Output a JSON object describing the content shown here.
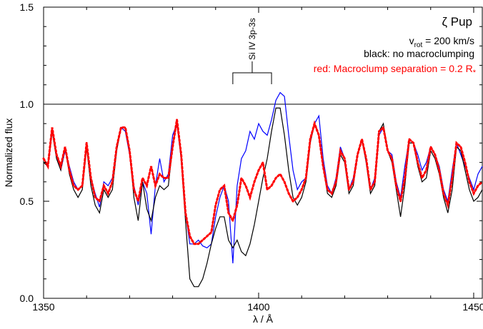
{
  "chart_data": {
    "type": "line",
    "title": "",
    "xlabel": "λ / Å",
    "ylabel": "Normalized flux",
    "xlim": [
      1350,
      1452
    ],
    "ylim": [
      0.0,
      1.5
    ],
    "x_ticks": [
      1350,
      1400,
      1450
    ],
    "x_tick_labels": [
      "1350",
      "1400",
      "1450"
    ],
    "y_ticks": [
      0.0,
      0.5,
      1.0,
      1.5
    ],
    "y_tick_labels": [
      "0.0",
      "0.5",
      "1.0",
      "1.5"
    ],
    "reference_line": 1.0,
    "annotations": {
      "star": "ζ Pup",
      "vrot": {
        "prefix": "v",
        "sub": "rot",
        "suffix": " = 200 km/s"
      },
      "black_note": "black: no macroclumping",
      "red_note": {
        "text": "red: Macroclump separation = 0.2 R",
        "sub": "*"
      },
      "line_id": "Si IV 3p-3s",
      "line_id_bracket": [
        1394,
        1403
      ]
    },
    "series": [
      {
        "color": "#0000ff",
        "style": "solid",
        "x": [
          1350,
          1351,
          1352,
          1353,
          1354,
          1355,
          1356,
          1357,
          1358,
          1359,
          1360,
          1361,
          1362,
          1363,
          1364,
          1365,
          1366,
          1367,
          1368,
          1369,
          1370,
          1371,
          1372,
          1373,
          1374,
          1375,
          1376,
          1377,
          1378,
          1379,
          1380,
          1381,
          1382,
          1383,
          1384,
          1385,
          1386,
          1387,
          1388,
          1389,
          1390,
          1391,
          1392,
          1393,
          1394,
          1395,
          1396,
          1397,
          1398,
          1399,
          1400,
          1401,
          1402,
          1403,
          1404,
          1405,
          1406,
          1407,
          1408,
          1409,
          1410,
          1411,
          1412,
          1413,
          1414,
          1415,
          1416,
          1417,
          1418,
          1419,
          1420,
          1421,
          1422,
          1423,
          1424,
          1425,
          1426,
          1427,
          1428,
          1429,
          1430,
          1431,
          1432,
          1433,
          1434,
          1435,
          1436,
          1437,
          1438,
          1439,
          1440,
          1441,
          1442,
          1443,
          1444,
          1445,
          1446,
          1447,
          1448,
          1449,
          1450,
          1451,
          1452
        ],
        "y": [
          0.72,
          0.68,
          0.86,
          0.74,
          0.66,
          0.76,
          0.68,
          0.6,
          0.56,
          0.58,
          0.78,
          0.62,
          0.54,
          0.47,
          0.6,
          0.58,
          0.62,
          0.78,
          0.88,
          0.86,
          0.74,
          0.58,
          0.48,
          0.6,
          0.54,
          0.33,
          0.58,
          0.72,
          0.6,
          0.64,
          0.84,
          0.9,
          0.72,
          0.44,
          0.28,
          0.28,
          0.3,
          0.27,
          0.26,
          0.28,
          0.42,
          0.52,
          0.58,
          0.5,
          0.18,
          0.58,
          0.72,
          0.76,
          0.86,
          0.82,
          0.9,
          0.86,
          0.84,
          0.92,
          1.02,
          1.06,
          1.04,
          0.84,
          0.66,
          0.56,
          0.6,
          0.62,
          0.82,
          0.9,
          0.94,
          0.72,
          0.58,
          0.54,
          0.62,
          0.78,
          0.72,
          0.56,
          0.62,
          0.74,
          0.82,
          0.7,
          0.56,
          0.62,
          0.84,
          0.88,
          0.76,
          0.74,
          0.6,
          0.52,
          0.68,
          0.82,
          0.8,
          0.74,
          0.66,
          0.7,
          0.78,
          0.74,
          0.68,
          0.56,
          0.5,
          0.66,
          0.8,
          0.74,
          0.68,
          0.62,
          0.56,
          0.64,
          0.68
        ]
      },
      {
        "color": "#000000",
        "style": "solid",
        "x": [
          1350,
          1351,
          1352,
          1353,
          1354,
          1355,
          1356,
          1357,
          1358,
          1359,
          1360,
          1361,
          1362,
          1363,
          1364,
          1365,
          1366,
          1367,
          1368,
          1369,
          1370,
          1371,
          1372,
          1373,
          1374,
          1375,
          1376,
          1377,
          1378,
          1379,
          1380,
          1381,
          1382,
          1383,
          1384,
          1385,
          1386,
          1387,
          1388,
          1389,
          1390,
          1391,
          1392,
          1393,
          1394,
          1395,
          1396,
          1397,
          1398,
          1399,
          1400,
          1401,
          1402,
          1403,
          1404,
          1405,
          1406,
          1407,
          1408,
          1409,
          1410,
          1411,
          1412,
          1413,
          1414,
          1415,
          1416,
          1417,
          1418,
          1419,
          1420,
          1421,
          1422,
          1423,
          1424,
          1425,
          1426,
          1427,
          1428,
          1429,
          1430,
          1431,
          1432,
          1433,
          1434,
          1435,
          1436,
          1437,
          1438,
          1439,
          1440,
          1441,
          1442,
          1443,
          1444,
          1445,
          1446,
          1447,
          1448,
          1449,
          1450,
          1451,
          1452
        ],
        "y": [
          0.7,
          0.68,
          0.86,
          0.72,
          0.66,
          0.78,
          0.64,
          0.56,
          0.52,
          0.56,
          0.78,
          0.58,
          0.48,
          0.44,
          0.56,
          0.52,
          0.56,
          0.76,
          0.88,
          0.88,
          0.76,
          0.52,
          0.4,
          0.6,
          0.46,
          0.4,
          0.52,
          0.58,
          0.56,
          0.58,
          0.78,
          0.92,
          0.72,
          0.4,
          0.1,
          0.06,
          0.06,
          0.1,
          0.18,
          0.28,
          0.36,
          0.42,
          0.42,
          0.3,
          0.26,
          0.3,
          0.24,
          0.22,
          0.28,
          0.38,
          0.5,
          0.62,
          0.72,
          0.86,
          0.98,
          0.98,
          0.84,
          0.66,
          0.52,
          0.48,
          0.52,
          0.6,
          0.8,
          0.9,
          0.84,
          0.68,
          0.54,
          0.52,
          0.58,
          0.74,
          0.7,
          0.54,
          0.58,
          0.74,
          0.82,
          0.7,
          0.54,
          0.58,
          0.86,
          0.9,
          0.76,
          0.7,
          0.56,
          0.42,
          0.58,
          0.8,
          0.8,
          0.68,
          0.6,
          0.62,
          0.76,
          0.72,
          0.64,
          0.52,
          0.44,
          0.56,
          0.78,
          0.76,
          0.66,
          0.56,
          0.5,
          0.52,
          0.56
        ]
      },
      {
        "color": "#ff0000",
        "style": "dotted",
        "x": [
          1350,
          1351,
          1352,
          1353,
          1354,
          1355,
          1356,
          1357,
          1358,
          1359,
          1360,
          1361,
          1362,
          1363,
          1364,
          1365,
          1366,
          1367,
          1368,
          1369,
          1370,
          1371,
          1372,
          1373,
          1374,
          1375,
          1376,
          1377,
          1378,
          1379,
          1380,
          1381,
          1382,
          1383,
          1384,
          1385,
          1386,
          1387,
          1388,
          1389,
          1390,
          1391,
          1392,
          1393,
          1394,
          1395,
          1396,
          1397,
          1398,
          1399,
          1400,
          1401,
          1402,
          1403,
          1404,
          1405,
          1406,
          1407,
          1408,
          1409,
          1410,
          1411,
          1412,
          1413,
          1414,
          1415,
          1416,
          1417,
          1418,
          1419,
          1420,
          1421,
          1422,
          1423,
          1424,
          1425,
          1426,
          1427,
          1428,
          1429,
          1430,
          1431,
          1432,
          1433,
          1434,
          1435,
          1436,
          1437,
          1438,
          1439,
          1440,
          1441,
          1442,
          1443,
          1444,
          1445,
          1446,
          1447,
          1448,
          1449,
          1450,
          1451,
          1452
        ],
        "y": [
          0.72,
          0.68,
          0.88,
          0.74,
          0.68,
          0.78,
          0.66,
          0.58,
          0.56,
          0.58,
          0.8,
          0.62,
          0.52,
          0.5,
          0.58,
          0.54,
          0.6,
          0.78,
          0.88,
          0.88,
          0.76,
          0.56,
          0.5,
          0.62,
          0.58,
          0.68,
          0.58,
          0.64,
          0.62,
          0.62,
          0.78,
          0.92,
          0.74,
          0.44,
          0.32,
          0.28,
          0.28,
          0.3,
          0.32,
          0.34,
          0.48,
          0.56,
          0.58,
          0.44,
          0.4,
          0.48,
          0.62,
          0.58,
          0.52,
          0.6,
          0.66,
          0.7,
          0.56,
          0.58,
          0.62,
          0.64,
          0.6,
          0.54,
          0.5,
          0.52,
          0.56,
          0.62,
          0.82,
          0.9,
          0.84,
          0.68,
          0.56,
          0.54,
          0.6,
          0.76,
          0.72,
          0.56,
          0.6,
          0.74,
          0.82,
          0.72,
          0.56,
          0.6,
          0.86,
          0.88,
          0.76,
          0.72,
          0.58,
          0.5,
          0.62,
          0.82,
          0.8,
          0.7,
          0.62,
          0.66,
          0.78,
          0.74,
          0.66,
          0.54,
          0.48,
          0.62,
          0.8,
          0.78,
          0.7,
          0.6,
          0.54,
          0.58,
          0.6
        ]
      }
    ]
  }
}
